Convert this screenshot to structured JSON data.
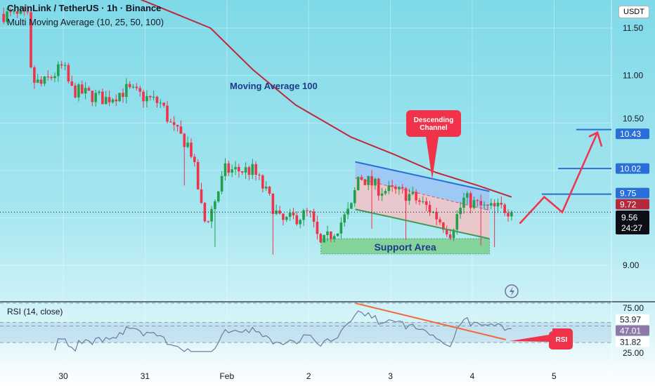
{
  "header": {
    "title": "ChainLink / TetherUS · 1h · Binance",
    "indicator": "Multi Moving Average (10, 25, 50, 100)",
    "currency": "USDT"
  },
  "rsi_header": "RSI (14, close)",
  "colors": {
    "up": "#22a04b",
    "down": "#f0334a",
    "ma100": "#c0283a",
    "channel_top": "#2a6fd8",
    "channel_bottom": "#3f9a58",
    "level": "#2a6fd8",
    "arrow": "#f0334a",
    "rsi_line": "#6e7a9c",
    "rsi_trend": "#f26a3a"
  },
  "chart_data": {
    "type": "candlestick",
    "title": "ChainLink / TetherUS · 1h · Binance",
    "x_unit": "days since Jan 30 00:00",
    "xlim": [
      -0.77,
      6.5
    ],
    "ylim": [
      8.7,
      11.8
    ],
    "x_ticks": [
      {
        "t": 0,
        "label": "30"
      },
      {
        "t": 1,
        "label": "31"
      },
      {
        "t": 2,
        "label": "Feb"
      },
      {
        "t": 3,
        "label": "2"
      },
      {
        "t": 4,
        "label": "3"
      },
      {
        "t": 5,
        "label": "4"
      },
      {
        "t": 6,
        "label": "5"
      }
    ],
    "y_ticks": [
      {
        "v": 11.5,
        "label": "11.50"
      },
      {
        "v": 11.0,
        "label": "11.00"
      },
      {
        "v": 10.5,
        "label": "10.50"
      },
      {
        "v": 9.0,
        "label": "9.00"
      }
    ],
    "price_path": [
      [
        -0.77,
        11.65
      ],
      [
        -0.43,
        11.6
      ],
      [
        -0.39,
        10.95
      ],
      [
        -0.26,
        10.9
      ],
      [
        0,
        11.1
      ],
      [
        0.09,
        10.85
      ],
      [
        0.52,
        10.75
      ],
      [
        0.77,
        10.85
      ],
      [
        1.2,
        10.7
      ],
      [
        1.33,
        10.45
      ],
      [
        1.55,
        10.25
      ],
      [
        1.63,
        9.9
      ],
      [
        1.72,
        9.45
      ],
      [
        1.8,
        9.55
      ],
      [
        1.98,
        10.0
      ],
      [
        2.32,
        10.0
      ],
      [
        2.49,
        9.75
      ],
      [
        2.66,
        9.45
      ],
      [
        3.01,
        9.55
      ],
      [
        3.14,
        9.2
      ],
      [
        3.35,
        9.4
      ],
      [
        3.52,
        9.6
      ],
      [
        3.61,
        9.95
      ],
      [
        3.87,
        9.8
      ],
      [
        4.21,
        9.75
      ],
      [
        4.47,
        9.6
      ],
      [
        4.73,
        9.35
      ],
      [
        4.9,
        9.7
      ],
      [
        5.15,
        9.6
      ],
      [
        5.41,
        9.6
      ],
      [
        5.5,
        9.56
      ]
    ],
    "ma100": {
      "name": "Moving Average 100",
      "points": [
        [
          -0.77,
          12.2
        ],
        [
          0.95,
          11.8
        ],
        [
          1.8,
          11.5
        ],
        [
          2.32,
          11.06
        ],
        [
          2.84,
          10.69
        ],
        [
          3.52,
          10.35
        ],
        [
          4.04,
          10.17
        ],
        [
          4.55,
          9.98
        ],
        [
          5.07,
          9.84
        ],
        [
          5.48,
          9.72
        ]
      ]
    },
    "last_price": {
      "value": "9.56",
      "countdown": "24:27"
    },
    "ma_value": "9.72",
    "levels": [
      {
        "v": 10.43,
        "label": "10.43",
        "from": 6.27
      },
      {
        "v": 10.02,
        "label": "10.02",
        "from": 6.05
      },
      {
        "v": 9.75,
        "label": "9.75",
        "from": 5.85
      }
    ],
    "channel": {
      "t0": 3.57,
      "t1": 5.21,
      "top": [
        10.09,
        9.78
      ],
      "bottom": [
        9.59,
        9.28
      ]
    },
    "support": {
      "t0": 3.15,
      "t1": 5.21,
      "hi": 9.28,
      "lo": 9.12,
      "label": "Support Area"
    },
    "projection": [
      [
        5.58,
        9.44
      ],
      [
        5.88,
        9.72
      ],
      [
        6.1,
        9.56
      ],
      [
        6.53,
        10.4
      ]
    ],
    "annotations": {
      "ma_label": "Moving Average 100",
      "channel_label": "Descending Channel",
      "rsi_label": "RSI"
    },
    "rsi": {
      "ylim": [
        25,
        75
      ],
      "bands": [
        {
          "v": 53.97,
          "label": "53.97"
        },
        {
          "v": 31.82,
          "label": "31.82"
        }
      ],
      "top_label": "75.00",
      "bottom_label": "25.00",
      "current": "47.01",
      "trend": [
        [
          3.57,
          75
        ],
        [
          5.41,
          35
        ]
      ]
    }
  }
}
